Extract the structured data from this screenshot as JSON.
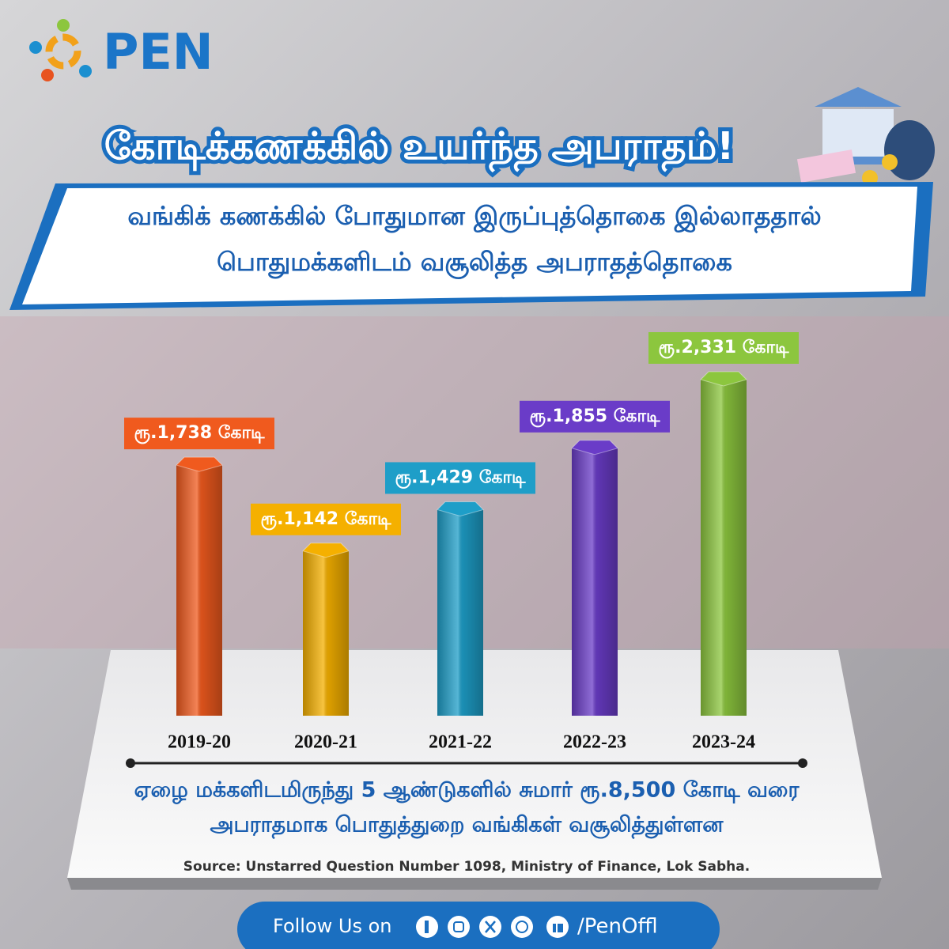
{
  "logo": "PEN",
  "chart_data": {
    "type": "bar",
    "title": "கோடிக்கணக்கில் உயர்ந்த அபராதம்!",
    "subtitle": [
      "வங்கிக் கணக்கில் போதுமான இருப்புத்தொகை இல்லாததால்",
      "பொதுமக்களிடம் வசூலித்த அபராதத்தொகை"
    ],
    "categories": [
      "2019-20",
      "2020-21",
      "2021-22",
      "2022-23",
      "2023-24"
    ],
    "values": [
      1738,
      1142,
      1429,
      1855,
      2331
    ],
    "value_labels": [
      "ரூ.1,738 கோடி",
      "ரூ.1,142 கோடி",
      "ரூ.1,429 கோடி",
      "ரூ.1,855 கோடி",
      "ரூ.2,331 கோடி"
    ],
    "colors": [
      "#f05a1e",
      "#f5b000",
      "#1e9ec8",
      "#6a3cc8",
      "#8cc63e"
    ]
  },
  "note": [
    "ஏழை மக்களிடமிருந்து 5 ஆண்டுகளில் சுமார் ரூ.8,500 கோடி வரை",
    "அபராதமாக பொதுத்துறை வங்கிகள் வசூலித்துள்ளன"
  ],
  "source": "Source: Unstarred Question Number 1098, Ministry of Finance, Lok Sabha.",
  "footer": {
    "follow": "Follow Us on",
    "handle": "/PenOffl"
  }
}
